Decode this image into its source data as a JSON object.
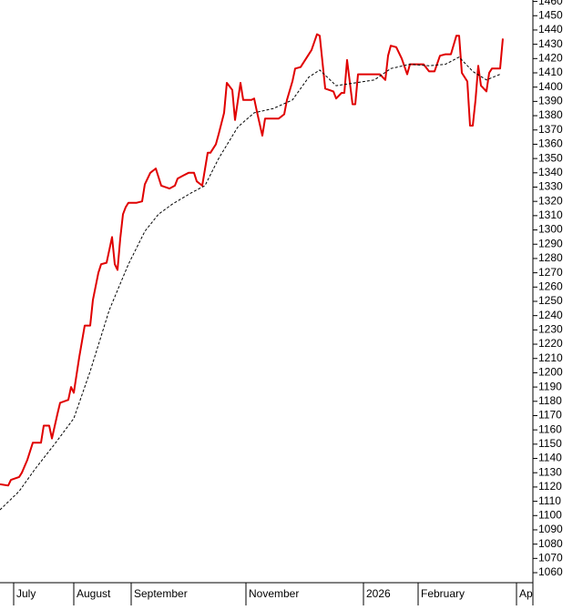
{
  "chart_data": {
    "type": "line",
    "xlim": [
      0,
      195
    ],
    "ylim": [
      1053,
      1461
    ],
    "xticks": [
      {
        "value": 5,
        "label": "July"
      },
      {
        "value": 27,
        "label": "August"
      },
      {
        "value": 48,
        "label": "September"
      },
      {
        "value": 90,
        "label": "November"
      },
      {
        "value": 133,
        "label": "2026"
      },
      {
        "value": 153,
        "label": "February"
      },
      {
        "value": 189,
        "label": "Ap"
      }
    ],
    "yticks": [
      1060,
      1070,
      1080,
      1090,
      1100,
      1110,
      1120,
      1130,
      1140,
      1150,
      1160,
      1170,
      1180,
      1190,
      1200,
      1210,
      1220,
      1230,
      1240,
      1250,
      1260,
      1270,
      1280,
      1290,
      1300,
      1310,
      1320,
      1330,
      1340,
      1350,
      1360,
      1370,
      1380,
      1390,
      1400,
      1410,
      1420,
      1430,
      1440,
      1450,
      1460
    ],
    "series": [
      {
        "color": "#e00000",
        "dashed": false,
        "x": [
          0,
          3,
          4,
          7,
          8,
          10,
          12,
          15,
          16,
          18,
          19,
          21,
          22,
          25,
          26,
          27,
          29,
          31,
          33,
          34,
          36,
          37,
          39,
          41,
          42,
          43,
          44,
          45,
          46,
          47,
          50,
          52,
          53,
          55,
          57,
          59,
          62,
          64,
          65,
          67,
          69,
          71,
          72,
          74,
          76,
          77,
          79,
          80,
          82,
          83,
          85,
          86,
          88,
          89,
          92,
          93,
          94,
          96,
          97,
          99,
          102,
          104,
          105,
          107,
          108,
          110,
          112,
          114,
          116,
          117,
          119,
          122,
          123,
          125,
          126,
          127,
          129,
          130,
          131,
          133,
          137,
          139,
          141,
          142,
          143,
          145,
          147,
          149,
          150,
          153,
          155,
          157,
          159,
          161,
          163,
          165,
          167,
          168,
          169,
          171,
          172,
          173,
          174,
          175,
          176,
          178,
          179,
          180,
          183,
          184
        ],
        "values": [
          1122,
          1121,
          1125,
          1127,
          1130,
          1139,
          1151,
          1151,
          1163,
          1163,
          1154,
          1171,
          1179,
          1181,
          1190,
          1186,
          1211,
          1233,
          1233,
          1251,
          1270,
          1276,
          1277,
          1295,
          1276,
          1272,
          1294,
          1311,
          1316,
          1319,
          1319,
          1320,
          1332,
          1340,
          1343,
          1331,
          1329,
          1331,
          1336,
          1338,
          1340,
          1340,
          1334,
          1331,
          1354,
          1354,
          1360,
          1367,
          1382,
          1403,
          1398,
          1377,
          1403,
          1391,
          1391,
          1392,
          1383,
          1366,
          1378,
          1378,
          1378,
          1381,
          1391,
          1404,
          1413,
          1414,
          1420,
          1426,
          1437,
          1436,
          1399,
          1397,
          1392,
          1396,
          1396,
          1419,
          1388,
          1388,
          1409,
          1409,
          1409,
          1409,
          1405,
          1422,
          1429,
          1428,
          1420,
          1409,
          1416,
          1416,
          1416,
          1411,
          1411,
          1422,
          1423,
          1423,
          1436,
          1436,
          1410,
          1404,
          1373,
          1373,
          1391,
          1415,
          1401,
          1397,
          1410,
          1413,
          1413,
          1434
        ]
      },
      {
        "color": "#000000",
        "dashed": true,
        "x": [
          0,
          7,
          13,
          20,
          27,
          33,
          40,
          47,
          53,
          58,
          63,
          70,
          75,
          80,
          87,
          93,
          100,
          107,
          113,
          117,
          123,
          130,
          137,
          143,
          150,
          157,
          163,
          168,
          173,
          178,
          183
        ],
        "values": [
          1104,
          1117,
          1133,
          1150,
          1168,
          1201,
          1244,
          1276,
          1299,
          1311,
          1318,
          1326,
          1331,
          1350,
          1372,
          1382,
          1385,
          1391,
          1407,
          1412,
          1401,
          1403,
          1405,
          1413,
          1416,
          1415,
          1416,
          1421,
          1411,
          1405,
          1409
        ]
      }
    ]
  }
}
